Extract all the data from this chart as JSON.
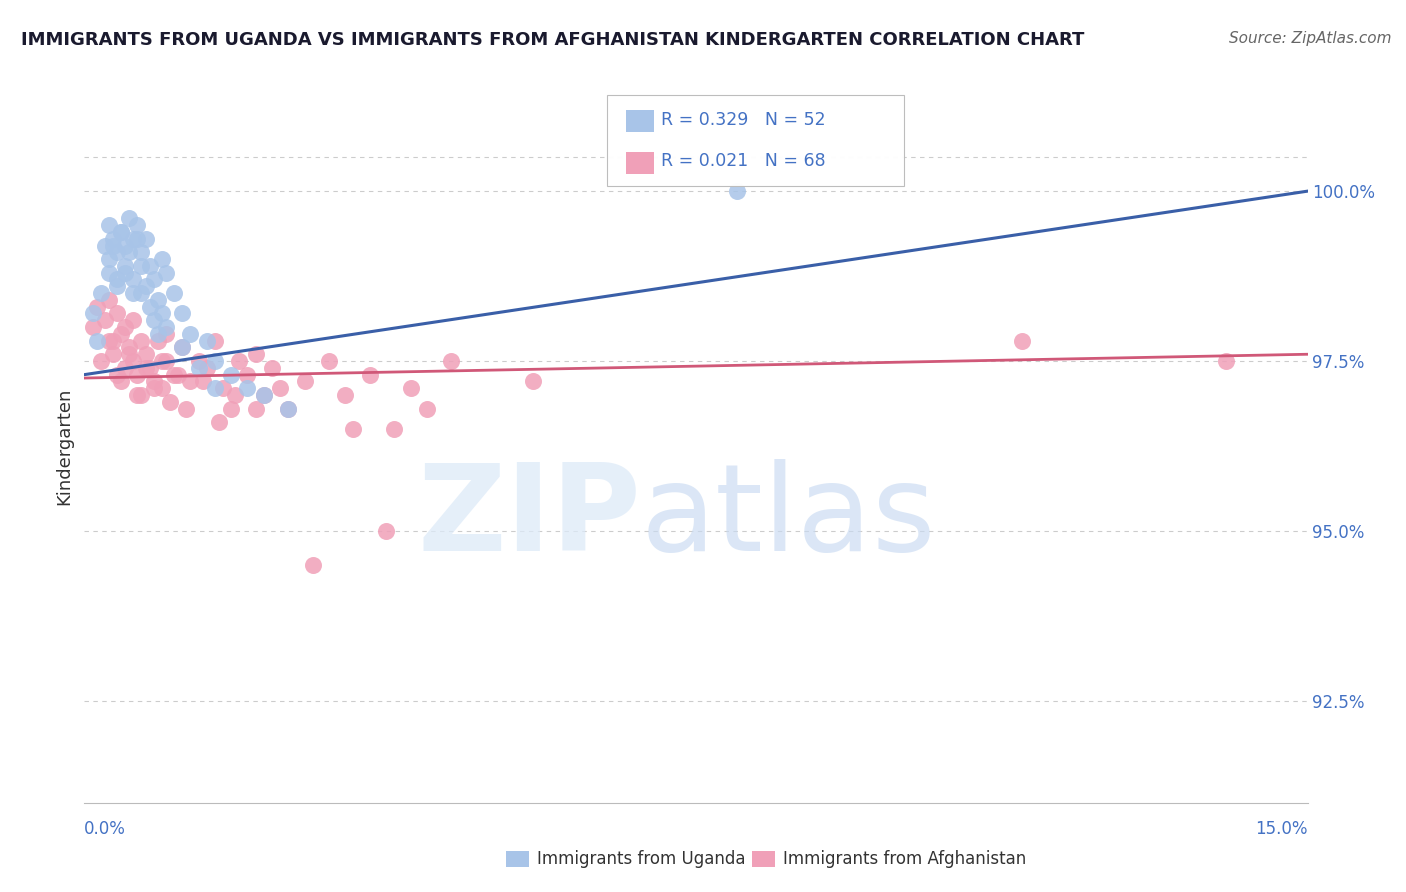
{
  "title": "IMMIGRANTS FROM UGANDA VS IMMIGRANTS FROM AFGHANISTAN KINDERGARTEN CORRELATION CHART",
  "source": "Source: ZipAtlas.com",
  "ylabel": "Kindergarten",
  "xmin": 0.0,
  "xmax": 15.0,
  "ymin": 91.0,
  "ymax": 101.5,
  "yticks": [
    92.5,
    95.0,
    97.5,
    100.0
  ],
  "ytick_labels": [
    "92.5%",
    "95.0%",
    "97.5%",
    "100.0%"
  ],
  "xleft_label": "0.0%",
  "xright_label": "15.0%",
  "legend_r1": "R = 0.329",
  "legend_n1": "N = 52",
  "legend_r2": "R = 0.021",
  "legend_n2": "N = 68",
  "uganda_color": "#a8c4e8",
  "afghanistan_color": "#f0a0b8",
  "uganda_line_color": "#3a5fa8",
  "afghanistan_line_color": "#d05878",
  "axis_label_color": "#4472c4",
  "title_color": "#1a1a2e",
  "background_color": "#ffffff",
  "grid_color": "#cccccc",
  "uganda_x": [
    0.1,
    0.15,
    0.2,
    0.25,
    0.3,
    0.3,
    0.35,
    0.4,
    0.4,
    0.45,
    0.5,
    0.5,
    0.55,
    0.6,
    0.6,
    0.65,
    0.7,
    0.7,
    0.75,
    0.8,
    0.85,
    0.9,
    0.95,
    1.0,
    1.1,
    1.2,
    1.3,
    1.5,
    1.6,
    1.8,
    2.0,
    2.2,
    2.5,
    0.3,
    0.35,
    0.4,
    0.45,
    0.5,
    0.55,
    0.6,
    0.65,
    0.7,
    0.75,
    0.8,
    0.85,
    0.9,
    0.95,
    1.0,
    1.2,
    1.4,
    1.6,
    8.0
  ],
  "uganda_y": [
    98.2,
    97.8,
    98.5,
    99.2,
    99.5,
    98.8,
    99.3,
    99.1,
    98.6,
    99.4,
    99.2,
    98.9,
    99.6,
    99.3,
    98.7,
    99.5,
    99.1,
    98.5,
    99.3,
    98.9,
    98.7,
    98.4,
    99.0,
    98.8,
    98.5,
    98.2,
    97.9,
    97.8,
    97.5,
    97.3,
    97.1,
    97.0,
    96.8,
    99.0,
    99.2,
    98.7,
    99.4,
    98.8,
    99.1,
    98.5,
    99.3,
    98.9,
    98.6,
    98.3,
    98.1,
    97.9,
    98.2,
    98.0,
    97.7,
    97.4,
    97.1,
    100.0
  ],
  "afghanistan_x": [
    0.1,
    0.15,
    0.2,
    0.25,
    0.3,
    0.3,
    0.35,
    0.4,
    0.4,
    0.45,
    0.5,
    0.5,
    0.55,
    0.6,
    0.6,
    0.65,
    0.7,
    0.7,
    0.75,
    0.8,
    0.85,
    0.9,
    0.95,
    1.0,
    1.0,
    1.1,
    1.2,
    1.3,
    1.4,
    1.5,
    1.6,
    1.7,
    1.8,
    1.9,
    2.0,
    2.1,
    2.2,
    2.3,
    2.5,
    2.7,
    3.0,
    3.2,
    3.5,
    3.8,
    4.0,
    4.2,
    0.35,
    0.45,
    0.55,
    0.65,
    0.75,
    0.85,
    0.95,
    1.05,
    1.15,
    1.25,
    1.45,
    1.65,
    1.85,
    2.1,
    2.4,
    2.8,
    3.3,
    3.7,
    4.5,
    5.5,
    11.5,
    14.0
  ],
  "afghanistan_y": [
    98.0,
    98.3,
    97.5,
    98.1,
    98.4,
    97.8,
    97.6,
    98.2,
    97.3,
    97.9,
    98.0,
    97.4,
    97.7,
    97.5,
    98.1,
    97.3,
    97.8,
    97.0,
    97.6,
    97.4,
    97.2,
    97.8,
    97.1,
    97.5,
    97.9,
    97.3,
    97.7,
    97.2,
    97.5,
    97.4,
    97.8,
    97.1,
    96.8,
    97.5,
    97.3,
    97.6,
    97.0,
    97.4,
    96.8,
    97.2,
    97.5,
    97.0,
    97.3,
    96.5,
    97.1,
    96.8,
    97.8,
    97.2,
    97.6,
    97.0,
    97.4,
    97.1,
    97.5,
    96.9,
    97.3,
    96.8,
    97.2,
    96.6,
    97.0,
    96.8,
    97.1,
    94.5,
    96.5,
    95.0,
    97.5,
    97.2,
    97.8,
    97.5
  ]
}
